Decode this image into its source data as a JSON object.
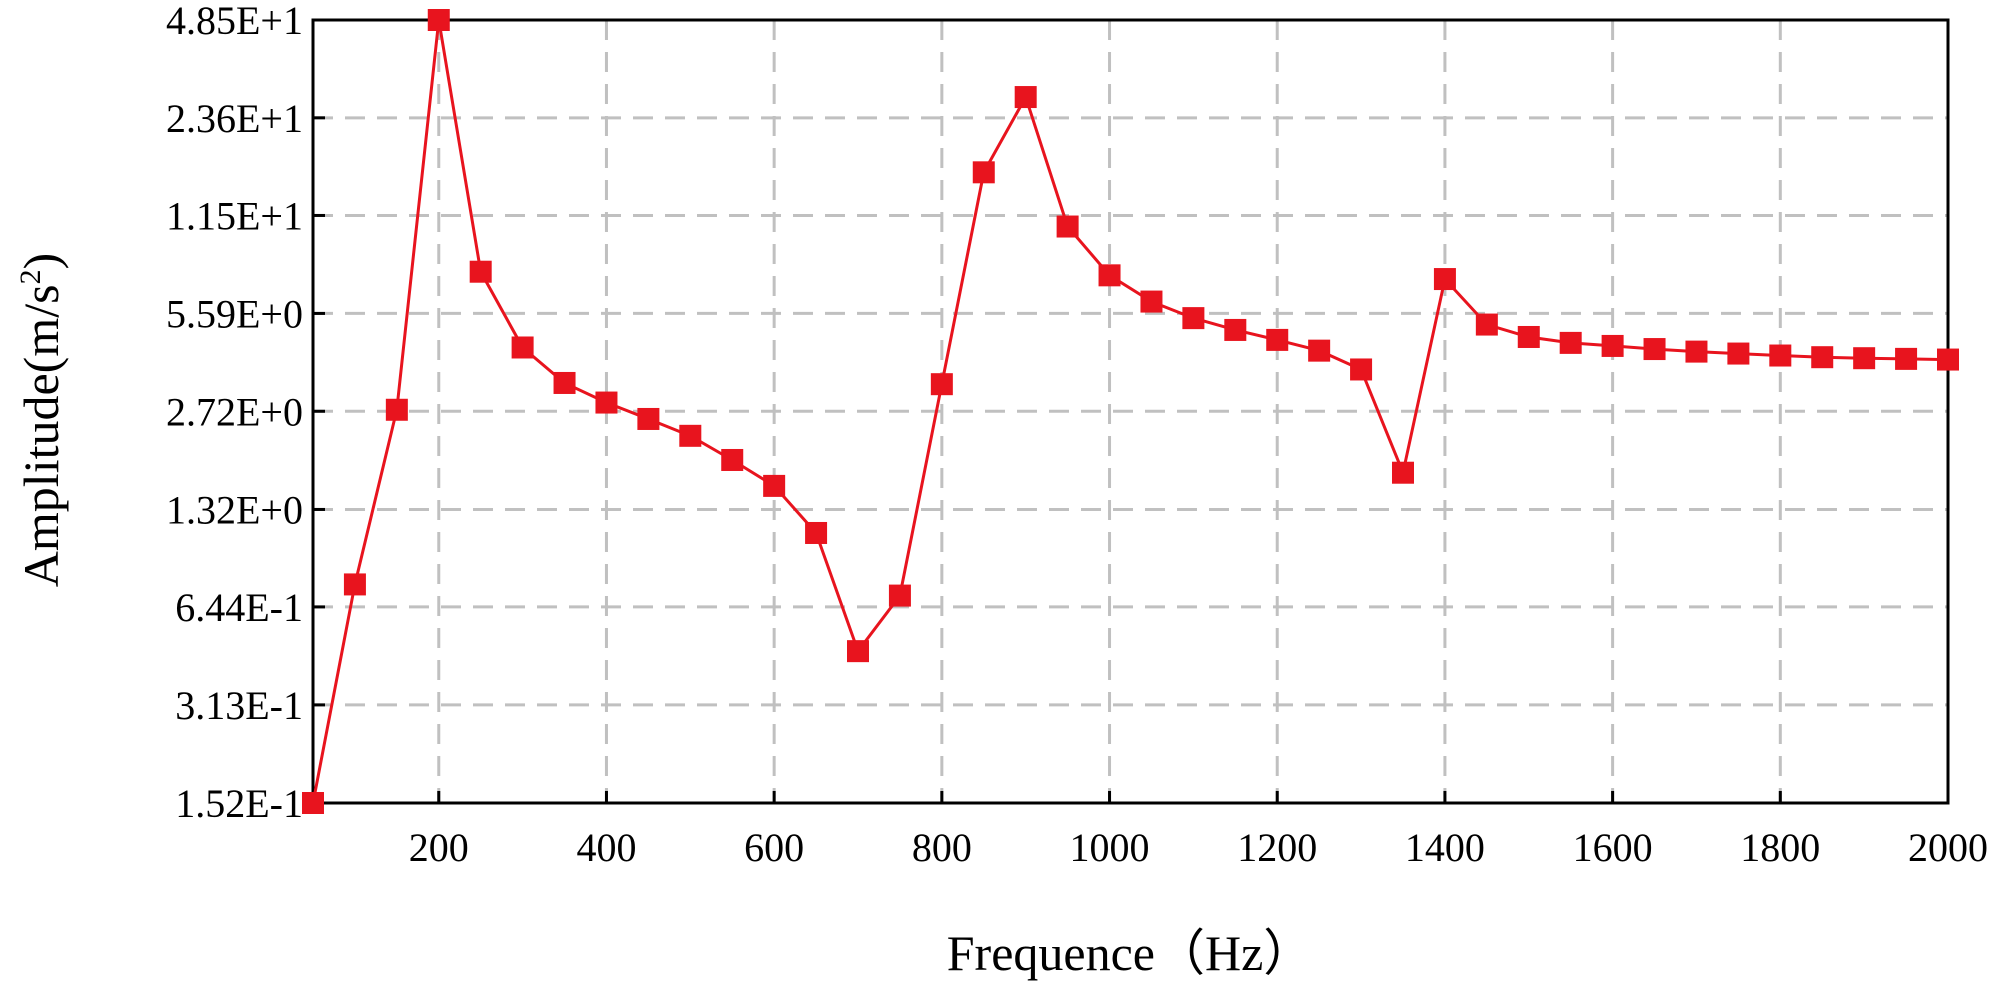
{
  "chart_data": {
    "type": "line",
    "title": "",
    "xlabel": "Frequence（Hz）",
    "ylabel_main": "Amplitude(m/s",
    "ylabel_sup": "2",
    "ylabel_close": ")",
    "y_scale": "log",
    "grid": true,
    "xlim": [
      50,
      2000
    ],
    "ylim": [
      0.152,
      48.5
    ],
    "x_ticks": [
      200,
      400,
      600,
      800,
      1000,
      1200,
      1400,
      1600,
      1800,
      2000
    ],
    "x_tick_labels": [
      "200",
      "400",
      "600",
      "800",
      "1000",
      "1200",
      "1400",
      "1600",
      "1800",
      "2000"
    ],
    "y_ticks": [
      0.152,
      0.313,
      0.644,
      1.32,
      2.72,
      5.59,
      11.5,
      23.6,
      48.5
    ],
    "y_tick_labels": [
      "1.52E-1",
      "3.13E-1",
      "6.44E-1",
      "1.32E+0",
      "2.72E+0",
      "5.59E+0",
      "1.15E+1",
      "2.36E+1",
      "4.85E+1"
    ],
    "series": [
      {
        "color": "#e8141e",
        "marker": "square",
        "x": [
          50,
          100,
          150,
          200,
          250,
          300,
          350,
          400,
          450,
          500,
          550,
          600,
          650,
          700,
          750,
          800,
          850,
          900,
          950,
          1000,
          1050,
          1100,
          1150,
          1200,
          1250,
          1300,
          1350,
          1400,
          1450,
          1500,
          1550,
          1600,
          1650,
          1700,
          1750,
          1800,
          1850,
          1900,
          1950,
          2000
        ],
        "y": [
          0.152,
          0.76,
          2.75,
          48.5,
          7.6,
          4.35,
          3.35,
          2.9,
          2.57,
          2.27,
          1.9,
          1.57,
          1.11,
          0.465,
          0.7,
          3.32,
          15.8,
          27.5,
          10.6,
          7.4,
          6.1,
          5.4,
          4.95,
          4.6,
          4.25,
          3.7,
          1.73,
          7.2,
          5.15,
          4.7,
          4.5,
          4.4,
          4.3,
          4.22,
          4.16,
          4.1,
          4.05,
          4.02,
          4.0,
          3.98
        ]
      }
    ]
  }
}
